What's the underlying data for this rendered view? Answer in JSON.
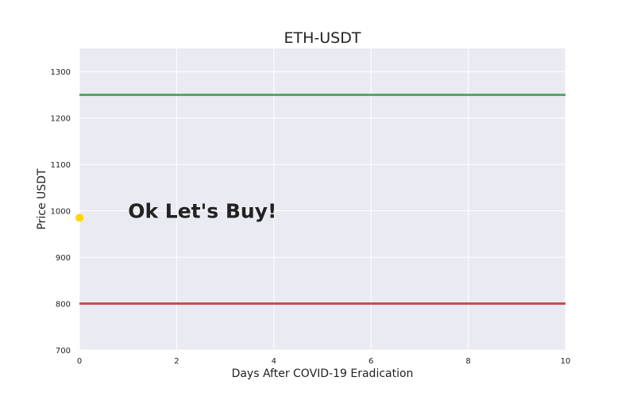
{
  "chart_data": {
    "type": "line",
    "title": "ETH-USDT",
    "xlabel": "Days After COVID-19 Eradication",
    "ylabel": "Price USDT",
    "xlim": [
      0,
      10
    ],
    "ylim": [
      700,
      1350
    ],
    "xticks": [
      0,
      2,
      4,
      6,
      8,
      10
    ],
    "yticks": [
      700,
      800,
      900,
      1000,
      1100,
      1200,
      1300
    ],
    "grid": true,
    "background": "#eaeaf2",
    "grid_color": "#ffffff",
    "series": [
      {
        "x": [
          0,
          10
        ],
        "y": [
          1250,
          1250
        ],
        "color": "#55a868"
      },
      {
        "x": [
          0,
          10
        ],
        "y": [
          800,
          800
        ],
        "color": "#c44e52"
      }
    ],
    "points": [
      {
        "x": 0,
        "y": 985,
        "color": "#ffd700"
      }
    ],
    "annotations": [
      {
        "text": "Ok Let's Buy!",
        "x": 1,
        "y": 1000
      }
    ]
  }
}
